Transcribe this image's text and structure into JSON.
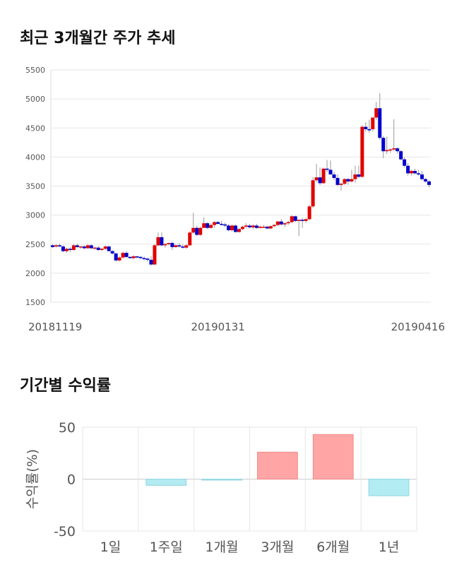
{
  "section1": {
    "title": "최근 3개월간 주가 추세"
  },
  "section2": {
    "title": "기간별 수익률"
  },
  "colors": {
    "up": "#e00000",
    "down": "#0000cc",
    "wick": "#999999",
    "bar_pos": "#ffa5a5",
    "bar_neg": "#b2ebf2",
    "grid": "#e6e6e6"
  },
  "chart_data": [
    {
      "type": "candlestick",
      "title": "최근 3개월간 주가 추세",
      "ylim": [
        1500,
        5500
      ],
      "yticks": [
        1500,
        2000,
        2500,
        3000,
        3500,
        4000,
        4500,
        5000,
        5500
      ],
      "xtick_labels": [
        {
          "label": "20181119",
          "index": 0
        },
        {
          "label": "20190131",
          "index": 47
        },
        {
          "label": "20190416",
          "index": 99
        }
      ],
      "grid": true,
      "candles": [
        [
          2480,
          2500,
          2440,
          2450
        ],
        [
          2460,
          2500,
          2440,
          2480
        ],
        [
          2480,
          2510,
          2450,
          2460
        ],
        [
          2460,
          2480,
          2360,
          2380
        ],
        [
          2380,
          2440,
          2350,
          2420
        ],
        [
          2420,
          2450,
          2360,
          2400
        ],
        [
          2400,
          2500,
          2390,
          2480
        ],
        [
          2480,
          2510,
          2440,
          2450
        ],
        [
          2450,
          2470,
          2420,
          2460
        ],
        [
          2460,
          2480,
          2410,
          2430
        ],
        [
          2430,
          2500,
          2420,
          2480
        ],
        [
          2480,
          2500,
          2410,
          2430
        ],
        [
          2430,
          2460,
          2400,
          2440
        ],
        [
          2440,
          2470,
          2380,
          2400
        ],
        [
          2400,
          2440,
          2380,
          2420
        ],
        [
          2420,
          2480,
          2400,
          2460
        ],
        [
          2460,
          2470,
          2380,
          2380
        ],
        [
          2380,
          2400,
          2320,
          2340
        ],
        [
          2340,
          2350,
          2200,
          2220
        ],
        [
          2220,
          2290,
          2200,
          2270
        ],
        [
          2270,
          2370,
          2260,
          2350
        ],
        [
          2350,
          2380,
          2260,
          2280
        ],
        [
          2280,
          2300,
          2250,
          2260
        ],
        [
          2260,
          2310,
          2240,
          2290
        ],
        [
          2290,
          2300,
          2250,
          2280
        ],
        [
          2280,
          2300,
          2240,
          2260
        ],
        [
          2260,
          2290,
          2220,
          2250
        ],
        [
          2250,
          2270,
          2200,
          2230
        ],
        [
          2230,
          2290,
          2130,
          2150
        ],
        [
          2150,
          2500,
          2140,
          2480
        ],
        [
          2480,
          2700,
          2460,
          2620
        ],
        [
          2620,
          2700,
          2460,
          2480
        ],
        [
          2480,
          2520,
          2440,
          2500
        ],
        [
          2500,
          2520,
          2480,
          2520
        ],
        [
          2520,
          2550,
          2400,
          2450
        ],
        [
          2450,
          2500,
          2440,
          2480
        ],
        [
          2480,
          2520,
          2440,
          2460
        ],
        [
          2460,
          2500,
          2420,
          2440
        ],
        [
          2440,
          2500,
          2420,
          2480
        ],
        [
          2480,
          2720,
          2470,
          2700
        ],
        [
          2700,
          3040,
          2680,
          2780
        ],
        [
          2780,
          2820,
          2640,
          2660
        ],
        [
          2660,
          2800,
          2640,
          2780
        ],
        [
          2780,
          2960,
          2780,
          2860
        ],
        [
          2860,
          2880,
          2760,
          2780
        ],
        [
          2780,
          2860,
          2770,
          2830
        ],
        [
          2830,
          2900,
          2780,
          2880
        ],
        [
          2880,
          2900,
          2840,
          2850
        ],
        [
          2850,
          2900,
          2820,
          2840
        ],
        [
          2840,
          2870,
          2790,
          2820
        ],
        [
          2820,
          2850,
          2720,
          2740
        ],
        [
          2740,
          2840,
          2720,
          2820
        ],
        [
          2820,
          2840,
          2700,
          2710
        ],
        [
          2710,
          2780,
          2700,
          2760
        ],
        [
          2760,
          2820,
          2740,
          2800
        ],
        [
          2800,
          2860,
          2780,
          2820
        ],
        [
          2820,
          2850,
          2770,
          2790
        ],
        [
          2790,
          2840,
          2760,
          2820
        ],
        [
          2820,
          2850,
          2760,
          2780
        ],
        [
          2780,
          2820,
          2770,
          2800
        ],
        [
          2800,
          2830,
          2780,
          2800
        ],
        [
          2800,
          2820,
          2760,
          2770
        ],
        [
          2770,
          2820,
          2760,
          2810
        ],
        [
          2810,
          2850,
          2790,
          2830
        ],
        [
          2830,
          2900,
          2810,
          2890
        ],
        [
          2890,
          2930,
          2820,
          2840
        ],
        [
          2840,
          2880,
          2790,
          2860
        ],
        [
          2860,
          2900,
          2830,
          2880
        ],
        [
          2880,
          3000,
          2860,
          2980
        ],
        [
          2980,
          2990,
          2880,
          2900
        ],
        [
          2900,
          2920,
          2640,
          2920
        ],
        [
          2920,
          2950,
          2780,
          2900
        ],
        [
          2900,
          2950,
          2870,
          2930
        ],
        [
          2930,
          3180,
          2910,
          3150
        ],
        [
          3150,
          3650,
          3120,
          3600
        ],
        [
          3600,
          3880,
          3570,
          3650
        ],
        [
          3650,
          3820,
          3520,
          3550
        ],
        [
          3550,
          3820,
          3540,
          3800
        ],
        [
          3800,
          3950,
          3740,
          3780
        ],
        [
          3780,
          3940,
          3700,
          3700
        ],
        [
          3700,
          3750,
          3600,
          3640
        ],
        [
          3640,
          3700,
          3500,
          3520
        ],
        [
          3520,
          3560,
          3420,
          3540
        ],
        [
          3540,
          3640,
          3520,
          3620
        ],
        [
          3620,
          3640,
          3520,
          3580
        ],
        [
          3580,
          3780,
          3560,
          3620
        ],
        [
          3620,
          3850,
          3560,
          3700
        ],
        [
          3700,
          3850,
          3640,
          3660
        ],
        [
          3660,
          4550,
          3640,
          4520
        ],
        [
          4520,
          4600,
          4440,
          4480
        ],
        [
          4480,
          4640,
          4420,
          4460
        ],
        [
          4480,
          4650,
          4440,
          4680
        ],
        [
          4680,
          4950,
          4640,
          4840
        ],
        [
          4840,
          5100,
          4300,
          4330
        ],
        [
          4330,
          4360,
          3980,
          4100
        ],
        [
          4100,
          4350,
          4050,
          4120
        ],
        [
          4120,
          4150,
          4070,
          4130
        ],
        [
          4130,
          4650,
          4100,
          4150
        ],
        [
          4150,
          4170,
          4060,
          4100
        ],
        [
          4100,
          4120,
          3950,
          3960
        ],
        [
          3960,
          4000,
          3820,
          3850
        ],
        [
          3850,
          3900,
          3680,
          3720
        ],
        [
          3720,
          3780,
          3680,
          3760
        ],
        [
          3760,
          3800,
          3700,
          3720
        ],
        [
          3720,
          3780,
          3680,
          3700
        ],
        [
          3700,
          3760,
          3600,
          3620
        ],
        [
          3620,
          3640,
          3560,
          3580
        ],
        [
          3580,
          3600,
          3480,
          3520
        ]
      ]
    },
    {
      "type": "bar",
      "title": "기간별 수익률",
      "ylabel": "수익률(%)",
      "ylim": [
        -50,
        50
      ],
      "yticks": [
        50,
        0,
        -50
      ],
      "categories": [
        "1일",
        "1주일",
        "1개월",
        "3개월",
        "6개월",
        "1년"
      ],
      "values": [
        0,
        -6,
        -1,
        26,
        43,
        -16
      ],
      "grid": true
    }
  ]
}
